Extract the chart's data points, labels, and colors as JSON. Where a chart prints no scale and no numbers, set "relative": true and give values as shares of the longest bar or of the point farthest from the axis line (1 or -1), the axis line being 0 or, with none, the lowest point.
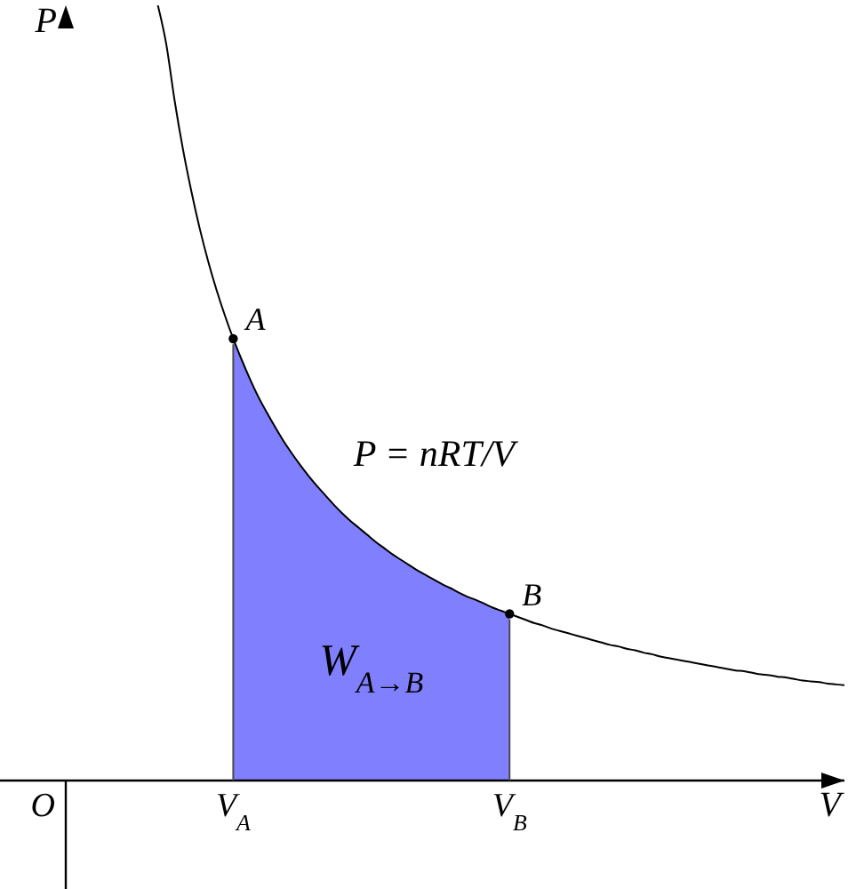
{
  "chart_data": {
    "type": "line",
    "relative": true,
    "xlabel": "V",
    "ylabel": "P",
    "categories": [
      null,
      null,
      null,
      null,
      null,
      null,
      null,
      null,
      null,
      null,
      null,
      null,
      null,
      null,
      null,
      null,
      null,
      null,
      null,
      null,
      "V$_{A}$",
      null,
      null,
      null,
      null,
      null,
      null,
      null,
      null,
      null,
      null,
      null,
      null,
      null,
      null,
      null,
      null,
      null,
      null,
      null,
      null,
      null,
      null,
      null,
      null,
      null,
      null,
      null,
      null,
      null,
      null,
      null,
      null,
      "V$_{B}$",
      null,
      null,
      null,
      null,
      null,
      null,
      null,
      null,
      null,
      null,
      null,
      null,
      null,
      null,
      null,
      null,
      null,
      null,
      null,
      null,
      null,
      null,
      null,
      null,
      null,
      null,
      null,
      null,
      null,
      null,
      null,
      null,
      null,
      null,
      null,
      null,
      null,
      null,
      null,
      null
    ],
    "series": [
      {
        "name": "P = nRT/V",
        "color": "#000000",
        "marker": "none",
        "values": [
          null,
          null,
          null,
          null,
          null,
          null,
          null,
          null,
          null,
          null,
          null,
          1,
          0.95,
          0.877,
          0.814,
          0.76,
          0.712,
          0.67,
          0.633,
          0.6,
          0.57,
          0.543,
          0.518,
          0.495,
          0.475,
          0.456,
          0.438,
          0.422,
          0.407,
          0.393,
          0.38,
          0.368,
          0.356,
          0.345,
          0.335,
          0.326,
          0.317,
          0.308,
          0.3,
          0.292,
          0.285,
          0.278,
          0.271,
          0.265,
          0.259,
          0.253,
          0.248,
          0.242,
          0.237,
          0.233,
          0.228,
          0.223,
          0.219,
          0.215,
          0.211,
          0.207,
          0.203,
          0.2,
          0.196,
          0.193,
          0.19,
          0.187,
          0.184,
          0.181,
          0.178,
          0.175,
          0.173,
          0.17,
          0.168,
          0.165,
          0.163,
          0.16,
          0.158,
          0.156,
          0.154,
          0.152,
          0.15,
          0.148,
          0.146,
          0.144,
          0.142,
          0.141,
          0.139,
          0.137,
          0.136,
          0.134,
          0.133,
          0.131,
          0.129,
          0.128,
          0.127,
          0.125,
          0.124,
          0.123
        ]
      },
      {
        "type": "area",
        "name": "W$_{A→B}$",
        "color": "#8080ff",
        "values": [
          null,
          null,
          null,
          null,
          null,
          null,
          null,
          null,
          null,
          null,
          null,
          null,
          null,
          null,
          null,
          null,
          null,
          null,
          null,
          null,
          0.57,
          0.543,
          0.518,
          0.495,
          0.475,
          0.456,
          0.438,
          0.422,
          0.407,
          0.393,
          0.38,
          0.368,
          0.356,
          0.345,
          0.335,
          0.326,
          0.317,
          0.308,
          0.3,
          0.292,
          0.285,
          0.278,
          0.271,
          0.265,
          0.259,
          0.253,
          0.248,
          0.242,
          0.237,
          0.233,
          0.228,
          0.223,
          0.219,
          0.215,
          null,
          null,
          null,
          null,
          null,
          null,
          null,
          null,
          null,
          null,
          null,
          null,
          null,
          null,
          null,
          null,
          null,
          null,
          null,
          null,
          null,
          null,
          null,
          null,
          null,
          null,
          null,
          null,
          null,
          null,
          null,
          null,
          null,
          null,
          null,
          null,
          null,
          null,
          null,
          null
        ]
      },
      {
        "type": "scatter",
        "color": "#000000",
        "marker": "circle",
        "values": [
          null,
          null,
          null,
          null,
          null,
          null,
          null,
          null,
          null,
          null,
          null,
          null,
          null,
          null,
          null,
          null,
          null,
          null,
          null,
          null,
          0.57,
          null,
          null,
          null,
          null,
          null,
          null,
          null,
          null,
          null,
          null,
          null,
          null,
          null,
          null,
          null,
          null,
          null,
          null,
          null,
          null,
          null,
          null,
          null,
          null,
          null,
          null,
          null,
          null,
          null,
          null,
          null,
          null,
          0.215,
          null,
          null,
          null,
          null,
          null,
          null,
          null,
          null,
          null,
          null,
          null,
          null,
          null,
          null,
          null,
          null,
          null,
          null,
          null,
          null,
          null,
          null,
          null,
          null,
          null,
          null,
          null,
          null,
          null,
          null,
          null,
          null,
          null,
          null,
          null,
          null,
          null,
          null,
          null,
          null
        ]
      }
    ],
    "annotations": [
      "O",
      {
        "text": "A",
        "x": "V$_{A}$",
        "y": 0.57
      },
      {
        "text": "B",
        "x": "V$_{B}$",
        "y": 0.215
      }
    ]
  }
}
